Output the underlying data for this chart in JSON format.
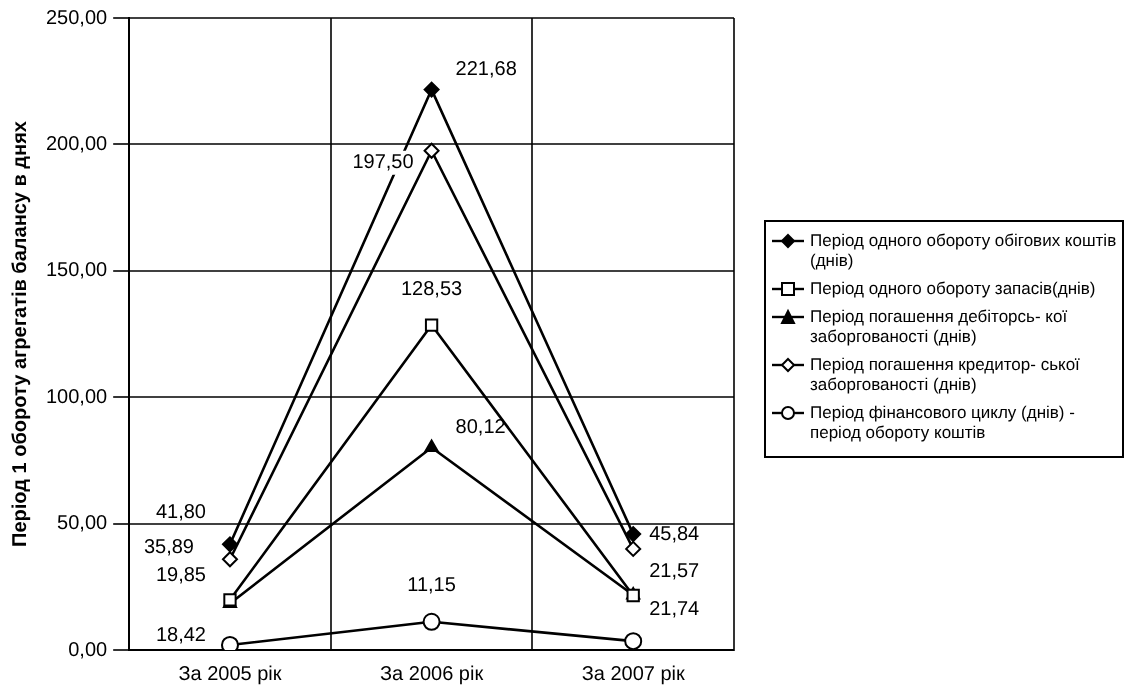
{
  "chart_data": {
    "type": "line",
    "ylabel": "Період 1 обороту агрегатів балансу в днях",
    "categories": [
      "За 2005 рік",
      "За 2006 рік",
      "За 2007 рік"
    ],
    "ylim": [
      0,
      250
    ],
    "yticks": [
      {
        "value": 0,
        "label": "0,00"
      },
      {
        "value": 50,
        "label": "50,00"
      },
      {
        "value": 100,
        "label": "100,00"
      },
      {
        "value": 150,
        "label": "150,00"
      },
      {
        "value": 200,
        "label": "200,00"
      },
      {
        "value": 250,
        "label": "250,00"
      }
    ],
    "grid": true,
    "legend": "right",
    "line_style": "solid",
    "series": [
      {
        "name": "Період одного обороту обігових коштів (днів)",
        "color": "#000000",
        "marker": "diamond",
        "values": [
          41.8,
          221.68,
          45.84
        ],
        "value_labels": [
          "41,80",
          "221,68",
          "45,84"
        ]
      },
      {
        "name": "Період одного обороту запасів(днів)",
        "color": "#000000",
        "marker": "square",
        "values": [
          19.85,
          128.53,
          21.57
        ],
        "value_labels": [
          "19,85",
          "128,53",
          "21,57"
        ]
      },
      {
        "name": "Період погашення дебіторсь- кої заборгованості (днів)",
        "color": "#000000",
        "marker": "triangle",
        "values": [
          18.42,
          80.12,
          21.74
        ],
        "value_labels": [
          "18,42",
          "80,12",
          "21,74"
        ]
      },
      {
        "name": "Період погашення кредитор-  ської заборгованості (днів)",
        "color": "#000000",
        "marker": "diamond",
        "values": [
          35.89,
          197.5,
          40
        ],
        "value_labels": [
          "35,89",
          "197,50",
          null
        ]
      },
      {
        "name": "Період фінансового циклу (днів) - період обороту коштів",
        "color": "#000000",
        "marker": "circle",
        "values": [
          2,
          11.15,
          3.5
        ],
        "value_labels": [
          null,
          "11,15",
          null
        ]
      }
    ]
  }
}
